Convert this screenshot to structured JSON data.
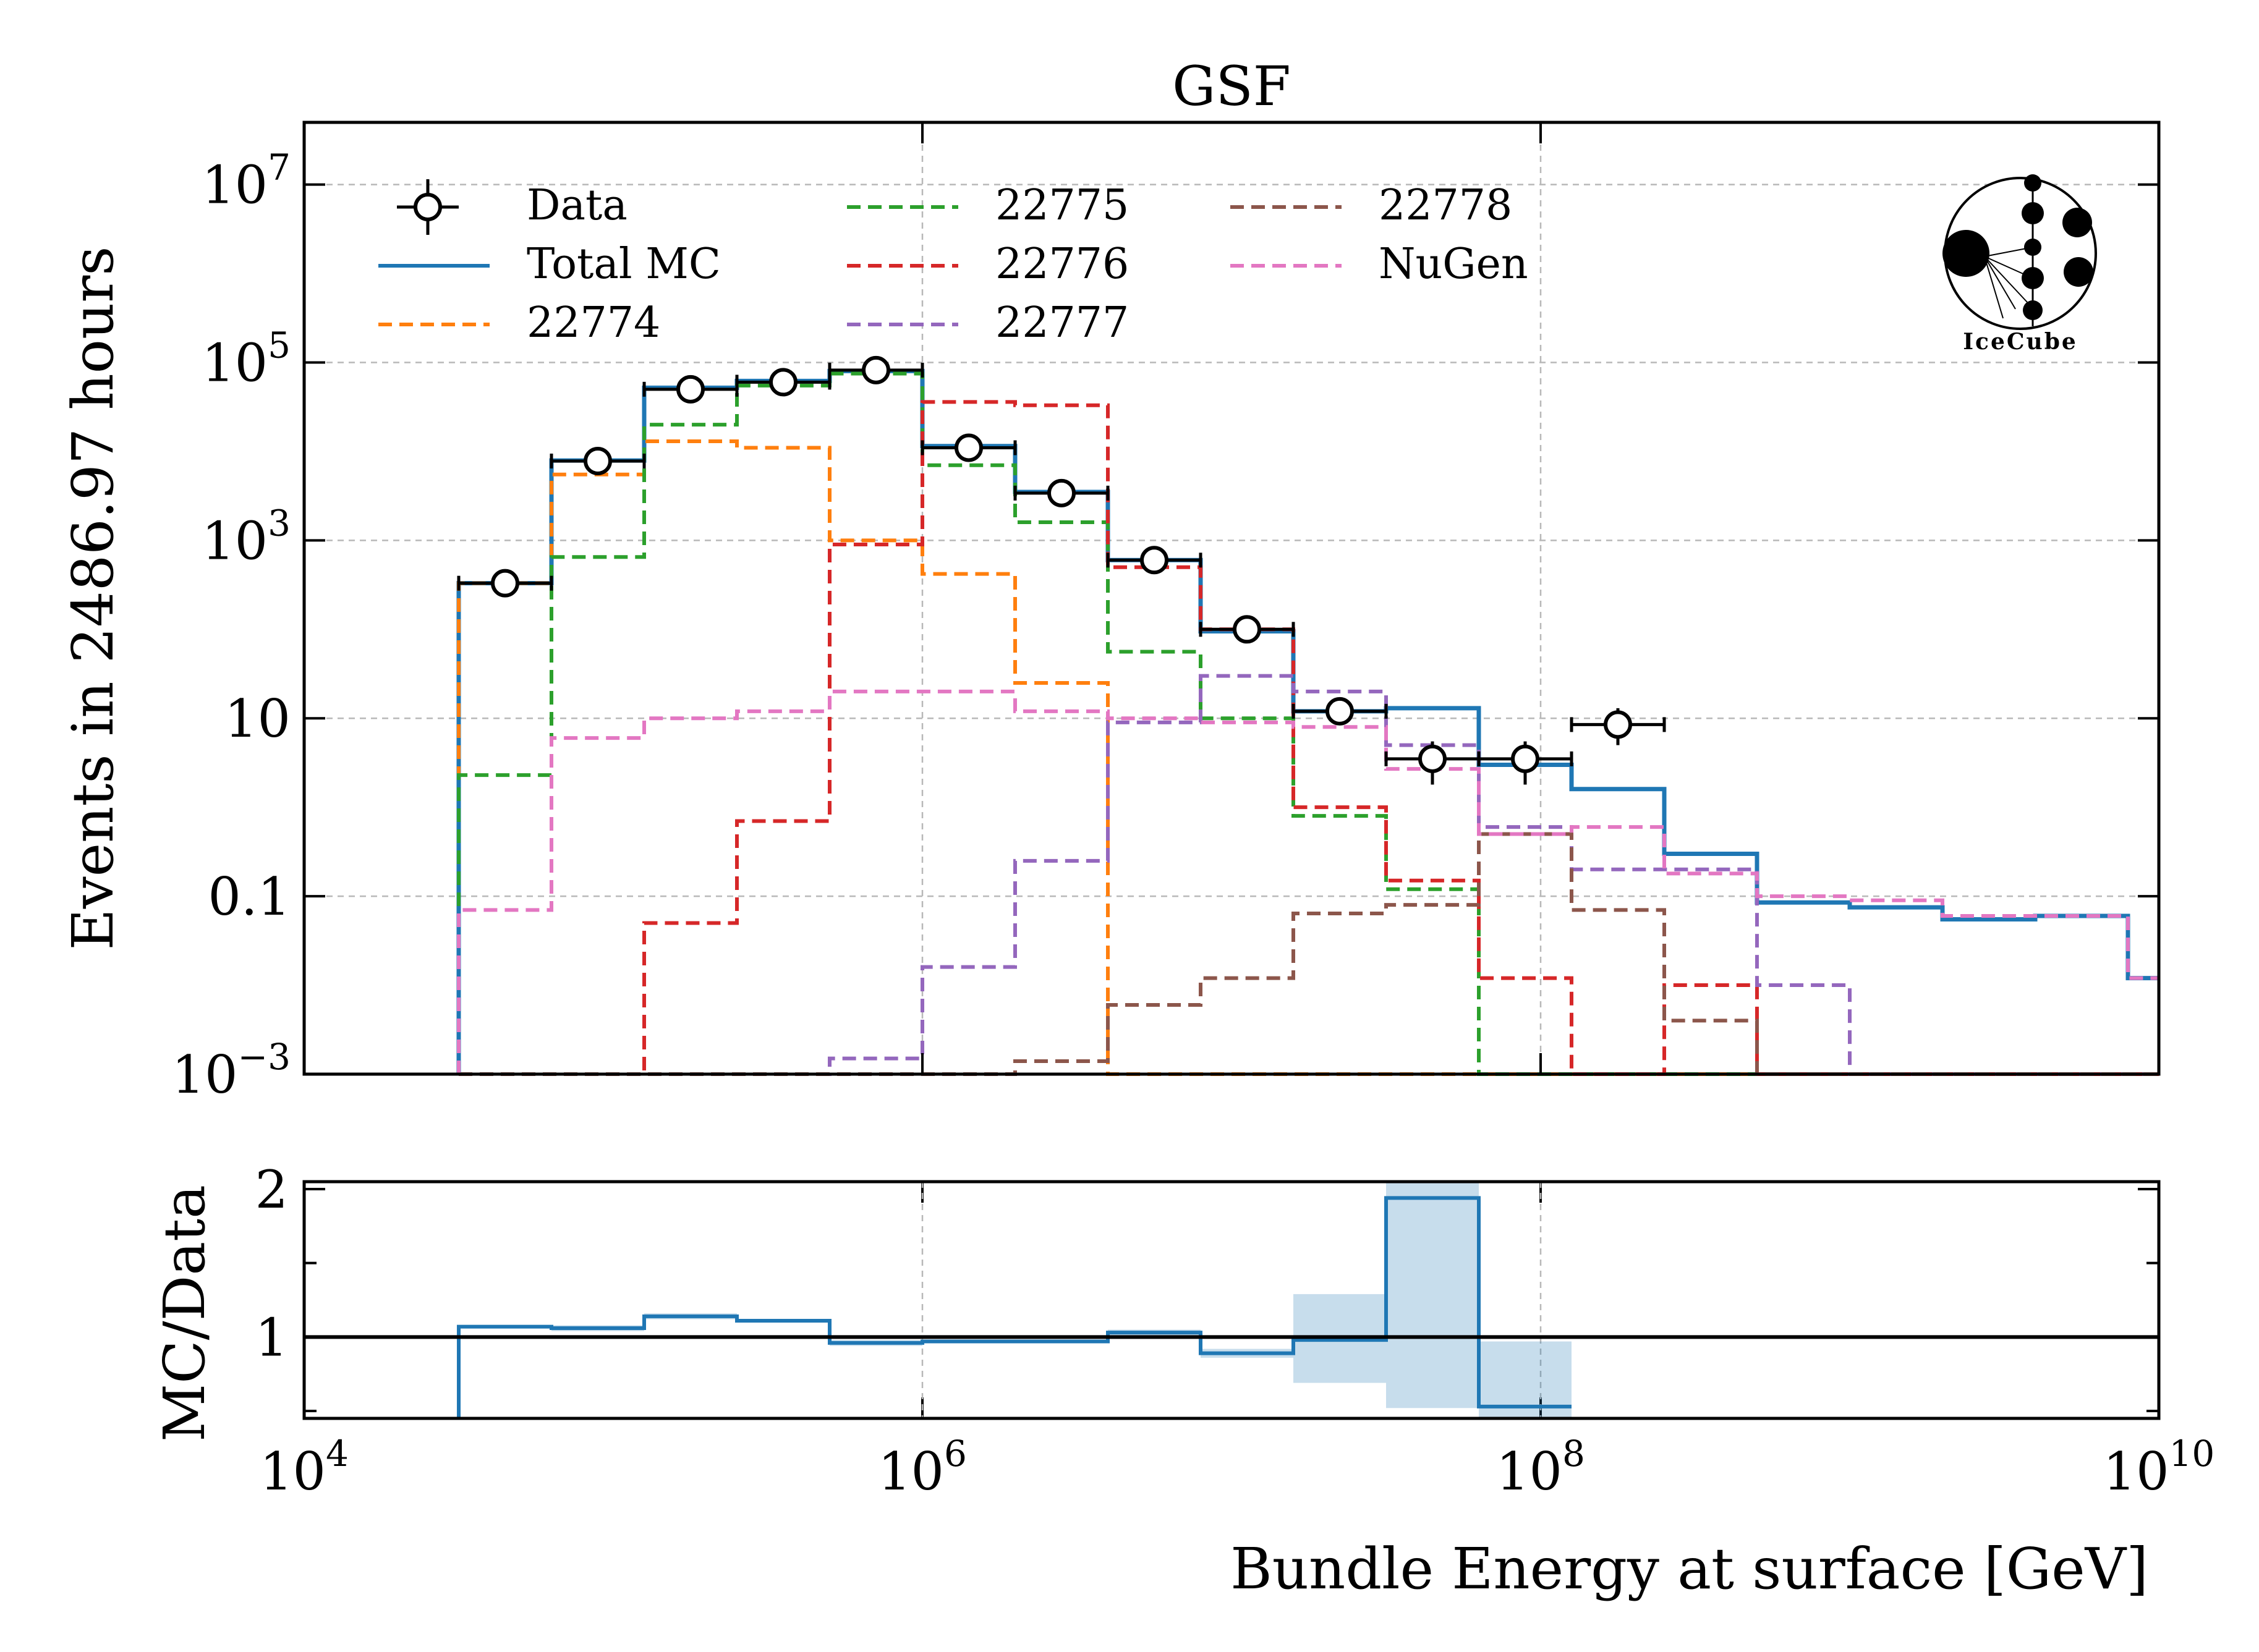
{
  "chart_data": [
    {
      "type": "line",
      "title": "GSF",
      "ylabel": "Events in 2486.97 hours",
      "xlabel": "",
      "x_scale": "log",
      "y_scale": "log",
      "xlim": [
        10000,
        10000000000
      ],
      "ylim": [
        0.001,
        50000000
      ],
      "grid": true,
      "legend_position": "top-left",
      "logo_text": "IceCube",
      "x_tick_labels": [
        {
          "base": "10",
          "exp": "4"
        },
        {
          "base": "10",
          "exp": "6"
        },
        {
          "base": "10",
          "exp": "8"
        },
        {
          "base": "10",
          "exp": "10"
        }
      ],
      "y_tick_labels": [
        {
          "base": "10",
          "exp": "−3",
          "value": 0.001
        },
        {
          "base": "0.1",
          "exp": "",
          "value": 0.1
        },
        {
          "base": "10",
          "exp": "",
          "value": 10
        },
        {
          "base": "10",
          "exp": "3",
          "value": 1000
        },
        {
          "base": "10",
          "exp": "5",
          "value": 100000
        },
        {
          "base": "10",
          "exp": "7",
          "value": 10000000
        }
      ],
      "bin_edges": [
        31623,
        63096,
        125893,
        251189,
        501187,
        1000000,
        1995262,
        3981072,
        7943282,
        15848932,
        31622777,
        63095734,
        125892541,
        251188643,
        501187234,
        1000000000,
        1995262315,
        3981071706,
        7943282347,
        10000000000
      ],
      "series": [
        {
          "name": "Data",
          "color": "#000000",
          "style": "errorbar",
          "points": [
            {
              "x": 44668,
              "y": 330,
              "lo": 300,
              "hi": 360
            },
            {
              "x": 89125,
              "y": 7800,
              "lo": 7500,
              "hi": 8100
            },
            {
              "x": 177828,
              "y": 50000,
              "lo": 49000,
              "hi": 51000
            },
            {
              "x": 354813,
              "y": 60000,
              "lo": 58000,
              "hi": 62000
            },
            {
              "x": 707946,
              "y": 82000,
              "lo": 80000,
              "hi": 84000
            },
            {
              "x": 1412538,
              "y": 11000,
              "lo": 10500,
              "hi": 11500
            },
            {
              "x": 2818383,
              "y": 3400,
              "lo": 3300,
              "hi": 3500
            },
            {
              "x": 5623413,
              "y": 600,
              "lo": 570,
              "hi": 630
            },
            {
              "x": 11220185,
              "y": 100,
              "lo": 90,
              "hi": 110
            },
            {
              "x": 22387211,
              "y": 12,
              "lo": 10,
              "hi": 14
            },
            {
              "x": 44668359,
              "y": 3.5,
              "lo": 1.8,
              "hi": 5.5
            },
            {
              "x": 89125094,
              "y": 3.5,
              "lo": 1.8,
              "hi": 5.5
            },
            {
              "x": 177827941,
              "y": 8.5,
              "lo": 5,
              "hi": 13
            }
          ]
        },
        {
          "name": "Total MC",
          "color": "#1f77b4",
          "style": "solid",
          "values": [
            330,
            7900,
            52000,
            62000,
            80000,
            11500,
            3500,
            600,
            95,
            12,
            13,
            3,
            1.6,
            0.3,
            0.085,
            0.075,
            0.055,
            0.06,
            0.012
          ]
        },
        {
          "name": "22774",
          "color": "#ff7f0e",
          "style": "dashed",
          "values": [
            330,
            5500,
            13000,
            11000,
            1000,
            420,
            25,
            0.001,
            0.001,
            0.001,
            0.001,
            0.001,
            0.001,
            0.001,
            0.001,
            0.001,
            0.001,
            0.001,
            0.001
          ]
        },
        {
          "name": "22775",
          "color": "#2ca02c",
          "style": "dashed",
          "values": [
            2.3,
            650,
            20000,
            55000,
            75000,
            7000,
            1600,
            56,
            10,
            0.8,
            0.12,
            0.001,
            0.001,
            0.001,
            0.001,
            0.001,
            0.001,
            0.001,
            0.001
          ]
        },
        {
          "name": "22776",
          "color": "#d62728",
          "style": "dashed",
          "values": [
            0.001,
            0.001,
            0.05,
            0.7,
            900,
            36000,
            33000,
            500,
            100,
            1.0,
            0.15,
            0.012,
            0.001,
            0.01,
            0.001,
            0.001,
            0.001,
            0.001,
            0.001
          ]
        },
        {
          "name": "22777",
          "color": "#9467bd",
          "style": "dashed",
          "values": [
            0.001,
            0.001,
            0.001,
            0.001,
            0.0015,
            0.016,
            0.25,
            9,
            30,
            20,
            5,
            0.6,
            0.2,
            0.2,
            0.01,
            0.001,
            0.001,
            0.001,
            0.001
          ]
        },
        {
          "name": "22778",
          "color": "#8c564b",
          "style": "dashed",
          "values": [
            0.001,
            0.001,
            0.001,
            0.001,
            0.001,
            0.001,
            0.0014,
            0.006,
            0.012,
            0.064,
            0.08,
            0.5,
            0.07,
            0.004,
            0.001,
            0.001,
            0.001,
            0.001,
            0.001
          ]
        },
        {
          "name": "NuGen",
          "color": "#e377c2",
          "style": "dashed",
          "values": [
            0.07,
            6,
            10,
            12,
            20,
            20,
            12,
            10,
            9,
            8,
            2.7,
            0.5,
            0.6,
            0.18,
            0.1,
            0.09,
            0.06,
            0.06,
            0.012
          ]
        }
      ]
    },
    {
      "type": "line",
      "title": "",
      "ylabel": "MC/Data",
      "xlabel": "Bundle Energy at surface [GeV]",
      "x_scale": "log",
      "xlim": [
        10000,
        10000000000
      ],
      "ylim": [
        0.45,
        2.05
      ],
      "y_tick_labels": [
        "1",
        "2"
      ],
      "reference_line": 1,
      "bin_edges": [
        31623,
        63096,
        125893,
        251189,
        501187,
        1000000,
        1995262,
        3981072,
        7943282,
        15848932,
        31622777,
        63095734,
        125892541
      ],
      "series": [
        {
          "name": "",
          "color": "#1f77b4",
          "style": "step",
          "values": [
            1.07,
            1.06,
            1.14,
            1.11,
            0.96,
            0.97,
            0.97,
            1.03,
            0.89,
            0.98,
            1.94,
            0.53
          ],
          "band_lo": [
            1.07,
            1.04,
            1.12,
            1.1,
            0.94,
            0.96,
            0.96,
            1.01,
            0.86,
            0.69,
            0.52,
            0.45
          ],
          "band_hi": [
            1.07,
            1.08,
            1.16,
            1.12,
            0.98,
            0.98,
            0.98,
            1.05,
            0.92,
            1.29,
            2.05,
            0.97
          ]
        }
      ]
    }
  ]
}
